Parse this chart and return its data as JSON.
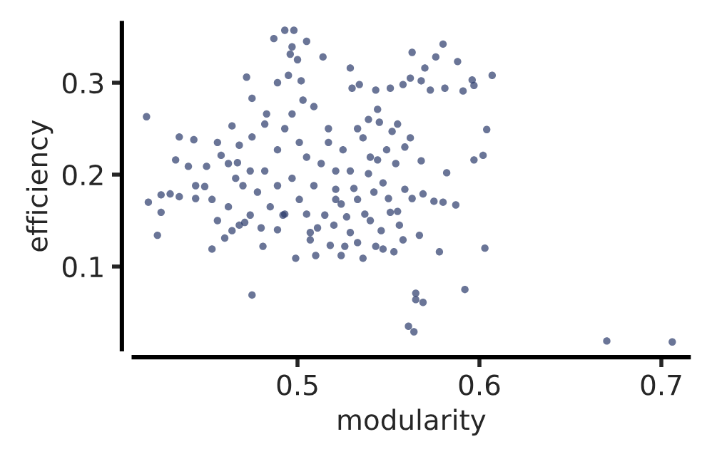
{
  "chart_data": {
    "type": "scatter",
    "xlabel": "modularity",
    "ylabel": "efficiency",
    "color": "#2b3a6b",
    "marker": "circle",
    "xlim": [
      0.41,
      0.715
    ],
    "ylim": [
      0.01,
      0.365
    ],
    "xticks": [
      0.5,
      0.6,
      0.7
    ],
    "yticks": [
      0.1,
      0.2,
      0.3
    ],
    "x": [
      0.417,
      0.423,
      0.475,
      0.561,
      0.564,
      0.565,
      0.565,
      0.569,
      0.592,
      0.603,
      0.578,
      0.567,
      0.67,
      0.706,
      0.607,
      0.604,
      0.602,
      0.58,
      0.563,
      0.576,
      0.588,
      0.57,
      0.562,
      0.568,
      0.596,
      0.597,
      0.558,
      0.581,
      0.573,
      0.591,
      0.551,
      0.543,
      0.534,
      0.53,
      0.529,
      0.514,
      0.505,
      0.597,
      0.582,
      0.568,
      0.562,
      0.555,
      0.552,
      0.545,
      0.544,
      0.539,
      0.536,
      0.559,
      0.549,
      0.544,
      0.554,
      0.539,
      0.559,
      0.547,
      0.493,
      0.498,
      0.487,
      0.497,
      0.496,
      0.5,
      0.472,
      0.475,
      0.489,
      0.495,
      0.502,
      0.464,
      0.435,
      0.443,
      0.456,
      0.468,
      0.433,
      0.44,
      0.45,
      0.458,
      0.467,
      0.475,
      0.483,
      0.482,
      0.418,
      0.425,
      0.43,
      0.435,
      0.425,
      0.444,
      0.449,
      0.456,
      0.46,
      0.453,
      0.464,
      0.468,
      0.471,
      0.48,
      0.481,
      0.489,
      0.499,
      0.507,
      0.51,
      0.507,
      0.474,
      0.492,
      0.462,
      0.524,
      0.536,
      0.553,
      0.558,
      0.547,
      0.543,
      0.533,
      0.526,
      0.518,
      0.511,
      0.52,
      0.529,
      0.546,
      0.556,
      0.555,
      0.551,
      0.54,
      0.537,
      0.527,
      0.515,
      0.524,
      0.533,
      0.542,
      0.55,
      0.569,
      0.575,
      0.58,
      0.587,
      0.563,
      0.509,
      0.521,
      0.531,
      0.493,
      0.501,
      0.505,
      0.513,
      0.521,
      0.497,
      0.489,
      0.482,
      0.478,
      0.47,
      0.485,
      0.493,
      0.501,
      0.517,
      0.525,
      0.529,
      0.509,
      0.503,
      0.497,
      0.517,
      0.533,
      0.54,
      0.521,
      0.505,
      0.489,
      0.474,
      0.466,
      0.453,
      0.444,
      0.462
    ],
    "values": [
      0.263,
      0.134,
      0.069,
      0.035,
      0.029,
      0.071,
      0.064,
      0.061,
      0.075,
      0.12,
      0.116,
      0.134,
      0.019,
      0.018,
      0.308,
      0.249,
      0.221,
      0.342,
      0.333,
      0.328,
      0.323,
      0.316,
      0.305,
      0.302,
      0.303,
      0.297,
      0.298,
      0.294,
      0.292,
      0.291,
      0.294,
      0.292,
      0.298,
      0.294,
      0.316,
      0.328,
      0.345,
      0.216,
      0.202,
      0.215,
      0.24,
      0.255,
      0.247,
      0.257,
      0.271,
      0.26,
      0.24,
      0.23,
      0.227,
      0.216,
      0.212,
      0.201,
      0.184,
      0.191,
      0.357,
      0.357,
      0.348,
      0.339,
      0.331,
      0.325,
      0.306,
      0.283,
      0.3,
      0.308,
      0.302,
      0.253,
      0.241,
      0.238,
      0.235,
      0.232,
      0.216,
      0.209,
      0.209,
      0.221,
      0.213,
      0.241,
      0.266,
      0.255,
      0.17,
      0.178,
      0.179,
      0.176,
      0.159,
      0.174,
      0.187,
      0.15,
      0.131,
      0.119,
      0.139,
      0.145,
      0.148,
      0.142,
      0.122,
      0.14,
      0.109,
      0.137,
      0.112,
      0.129,
      0.156,
      0.156,
      0.165,
      0.112,
      0.109,
      0.116,
      0.129,
      0.119,
      0.122,
      0.126,
      0.122,
      0.123,
      0.142,
      0.145,
      0.137,
      0.139,
      0.145,
      0.16,
      0.159,
      0.15,
      0.157,
      0.154,
      0.156,
      0.168,
      0.173,
      0.181,
      0.174,
      0.179,
      0.171,
      0.17,
      0.167,
      0.174,
      0.188,
      0.184,
      0.185,
      0.25,
      0.235,
      0.219,
      0.212,
      0.204,
      0.196,
      0.188,
      0.204,
      0.181,
      0.188,
      0.165,
      0.157,
      0.173,
      0.235,
      0.227,
      0.204,
      0.274,
      0.281,
      0.266,
      0.25,
      0.25,
      0.219,
      0.173,
      0.157,
      0.227,
      0.204,
      0.196,
      0.173,
      0.188,
      0.212
    ]
  }
}
